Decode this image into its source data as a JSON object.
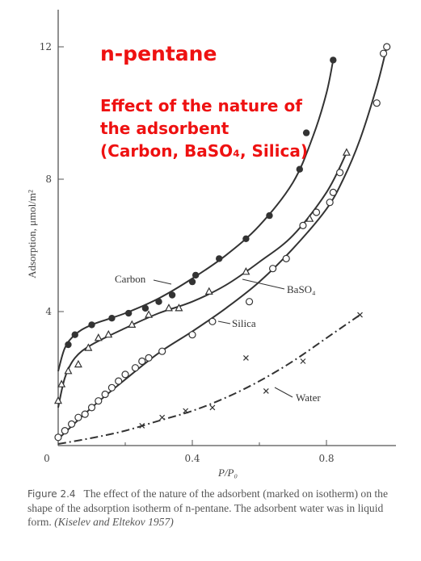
{
  "overlay": {
    "title": "n-pentane",
    "subtitle": "Effect of the nature of the adsorbent (Carbon, BaSO₄, Silica)"
  },
  "caption": {
    "figure_label": "Figure 2.4",
    "text": "The effect of the nature of the adsorbent (marked on isotherm) on the shape of the adsorption isotherm of n-pentane. The adsorbent water was in liquid form.",
    "citation": "(Kiselev and Eltekov 1957)"
  },
  "chart_data": {
    "type": "scatter",
    "xlabel": "P/P₀",
    "ylabel": "Adsorption, μmol/m²",
    "xlim": [
      0,
      1.0
    ],
    "ylim": [
      0,
      13
    ],
    "x_ticks": [
      {
        "value": 0,
        "label": "0"
      },
      {
        "value": 0.4,
        "label": "0.4"
      },
      {
        "value": 0.8,
        "label": "0.8"
      }
    ],
    "y_ticks": [
      {
        "value": 4,
        "label": "4"
      },
      {
        "value": 8,
        "label": "8"
      },
      {
        "value": 12,
        "label": "12"
      }
    ],
    "grid": false,
    "series": [
      {
        "name": "Carbon",
        "marker": "filled-circle",
        "points": [
          [
            0.03,
            3.0
          ],
          [
            0.05,
            3.3
          ],
          [
            0.1,
            3.6
          ],
          [
            0.16,
            3.8
          ],
          [
            0.21,
            3.95
          ],
          [
            0.26,
            4.1
          ],
          [
            0.3,
            4.3
          ],
          [
            0.34,
            4.5
          ],
          [
            0.4,
            4.9
          ],
          [
            0.41,
            5.1
          ],
          [
            0.48,
            5.6
          ],
          [
            0.56,
            6.2
          ],
          [
            0.63,
            6.9
          ],
          [
            0.72,
            8.3
          ],
          [
            0.74,
            9.4
          ],
          [
            0.82,
            11.6
          ]
        ],
        "curve": [
          [
            0,
            2.2
          ],
          [
            0.02,
            2.9
          ],
          [
            0.05,
            3.3
          ],
          [
            0.1,
            3.6
          ],
          [
            0.2,
            3.95
          ],
          [
            0.3,
            4.4
          ],
          [
            0.4,
            5.0
          ],
          [
            0.5,
            5.7
          ],
          [
            0.6,
            6.6
          ],
          [
            0.7,
            7.9
          ],
          [
            0.76,
            9.3
          ],
          [
            0.8,
            10.6
          ],
          [
            0.82,
            11.6
          ]
        ]
      },
      {
        "name": "BaSO₄",
        "marker": "open-triangle",
        "points": [
          [
            0,
            1.3
          ],
          [
            0.01,
            1.8
          ],
          [
            0.03,
            2.2
          ],
          [
            0.06,
            2.4
          ],
          [
            0.09,
            2.9
          ],
          [
            0.12,
            3.2
          ],
          [
            0.15,
            3.3
          ],
          [
            0.22,
            3.6
          ],
          [
            0.27,
            3.9
          ],
          [
            0.33,
            4.1
          ],
          [
            0.36,
            4.1
          ],
          [
            0.45,
            4.6
          ],
          [
            0.56,
            5.2
          ],
          [
            0.75,
            6.8
          ],
          [
            0.86,
            8.8
          ]
        ],
        "curve": [
          [
            0,
            1.1
          ],
          [
            0.02,
            2.0
          ],
          [
            0.05,
            2.6
          ],
          [
            0.1,
            3.0
          ],
          [
            0.2,
            3.5
          ],
          [
            0.3,
            3.95
          ],
          [
            0.4,
            4.3
          ],
          [
            0.5,
            4.8
          ],
          [
            0.6,
            5.5
          ],
          [
            0.7,
            6.3
          ],
          [
            0.8,
            7.6
          ],
          [
            0.86,
            8.8
          ]
        ]
      },
      {
        "name": "Silica",
        "marker": "open-circle",
        "points": [
          [
            0,
            0.2
          ],
          [
            0.02,
            0.4
          ],
          [
            0.04,
            0.6
          ],
          [
            0.06,
            0.8
          ],
          [
            0.08,
            0.9
          ],
          [
            0.1,
            1.1
          ],
          [
            0.12,
            1.3
          ],
          [
            0.14,
            1.5
          ],
          [
            0.16,
            1.7
          ],
          [
            0.18,
            1.9
          ],
          [
            0.2,
            2.1
          ],
          [
            0.23,
            2.3
          ],
          [
            0.25,
            2.5
          ],
          [
            0.27,
            2.6
          ],
          [
            0.31,
            2.8
          ],
          [
            0.4,
            3.3
          ],
          [
            0.46,
            3.7
          ],
          [
            0.57,
            4.3
          ],
          [
            0.64,
            5.3
          ],
          [
            0.68,
            5.6
          ],
          [
            0.73,
            6.6
          ],
          [
            0.77,
            7.0
          ],
          [
            0.81,
            7.3
          ],
          [
            0.82,
            7.6
          ],
          [
            0.84,
            8.2
          ],
          [
            0.95,
            10.3
          ],
          [
            0.97,
            11.8
          ],
          [
            0.98,
            12.0
          ]
        ],
        "curve": [
          [
            0,
            0.15
          ],
          [
            0.1,
            1.1
          ],
          [
            0.2,
            1.95
          ],
          [
            0.3,
            2.75
          ],
          [
            0.4,
            3.4
          ],
          [
            0.5,
            4.1
          ],
          [
            0.6,
            4.9
          ],
          [
            0.7,
            5.9
          ],
          [
            0.8,
            7.1
          ],
          [
            0.85,
            8.0
          ],
          [
            0.9,
            9.2
          ],
          [
            0.95,
            10.8
          ],
          [
            0.98,
            12.0
          ]
        ]
      },
      {
        "name": "Water",
        "marker": "cross",
        "points": [
          [
            0.25,
            0.55
          ],
          [
            0.31,
            0.8
          ],
          [
            0.38,
            1.0
          ],
          [
            0.46,
            1.1
          ],
          [
            0.56,
            2.6
          ],
          [
            0.62,
            1.6
          ],
          [
            0.73,
            2.5
          ],
          [
            0.9,
            3.9
          ]
        ],
        "curve": [
          [
            0,
            0
          ],
          [
            0.1,
            0.18
          ],
          [
            0.2,
            0.4
          ],
          [
            0.3,
            0.7
          ],
          [
            0.4,
            1.0
          ],
          [
            0.5,
            1.4
          ],
          [
            0.6,
            1.9
          ],
          [
            0.7,
            2.5
          ],
          [
            0.8,
            3.2
          ],
          [
            0.9,
            3.9
          ]
        ]
      }
    ],
    "annotations": [
      {
        "text": "Carbon",
        "series": "Carbon"
      },
      {
        "text": "BaSO₄",
        "series": "BaSO₄"
      },
      {
        "text": "Silica",
        "series": "Silica"
      },
      {
        "text": "Water",
        "series": "Water"
      }
    ]
  }
}
